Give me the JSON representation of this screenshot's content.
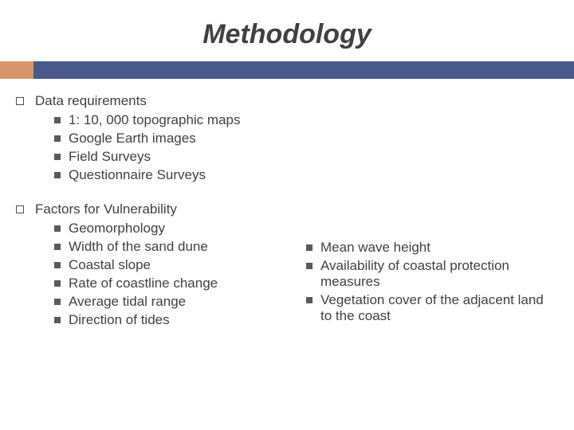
{
  "title": "Methodology",
  "colors": {
    "bar_main": "#4a598c",
    "bar_accent": "#d8956b",
    "text": "#404040",
    "hollow_border": "#505050",
    "filled_square": "#5a5a5a",
    "background": "#ffffff"
  },
  "typography": {
    "title_fontsize": 34,
    "title_italic": true,
    "title_bold": true,
    "body_fontsize": 17
  },
  "section1": {
    "label": "Data requirements",
    "items": [
      "1: 10, 000 topographic maps",
      "Google Earth images",
      "Field Surveys",
      "Questionnaire Surveys"
    ]
  },
  "section2": {
    "label": "Factors for Vulnerability",
    "left_items": [
      "Geomorphology",
      "Width of the sand dune",
      "Coastal slope",
      "Rate of coastline change",
      "Average tidal range",
      "Direction of tides"
    ],
    "right_items": [
      "Mean wave height",
      "Availability of coastal protection measures",
      "Vegetation cover of the adjacent land to the coast"
    ]
  }
}
